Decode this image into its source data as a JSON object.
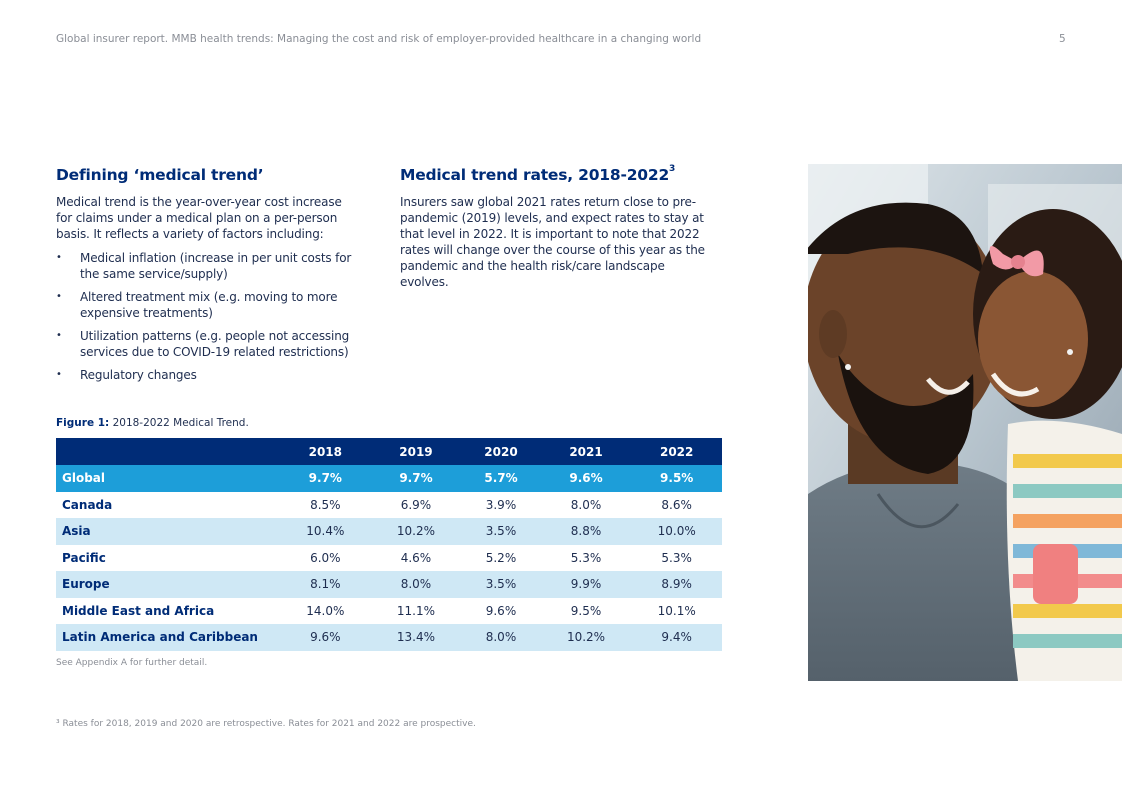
{
  "header": {
    "running_title": "Global insurer report. MMB health trends: Managing the cost and risk of employer-provided healthcare in a changing world",
    "page_number": "5"
  },
  "definition": {
    "heading": "Defining ‘medical trend’",
    "paragraph": "Medical trend is the year-over-year cost increase for claims under a medical plan on a per-person basis. It reflects a variety of factors including:",
    "bullets": [
      "Medical inflation (increase in per unit costs for the same service/supply)",
      "Altered treatment mix (e.g. moving to more expensive treatments)",
      "Utilization patterns (e.g. people not accessing services due to COVID-19 related restrictions)",
      "Regulatory changes"
    ]
  },
  "rates": {
    "heading": "Medical trend rates, 2018-2022",
    "heading_sup": "3",
    "paragraph": "Insurers saw global 2021 rates return close to pre-pandemic (2019) levels, and expect rates to stay at that level in 2022. It is important to note that 2022 rates will change over the course of this year as the pandemic and the health risk/care landscape evolves."
  },
  "figure": {
    "label": "Figure 1:",
    "caption": "2018-2022 Medical Trend."
  },
  "table": {
    "columns": [
      "",
      "2018",
      "2019",
      "2020",
      "2021",
      "2022"
    ],
    "rows": [
      {
        "region": "Global",
        "values": [
          "9.7%",
          "9.7%",
          "5.7%",
          "9.6%",
          "9.5%"
        ]
      },
      {
        "region": "Canada",
        "values": [
          "8.5%",
          "6.9%",
          "3.9%",
          "8.0%",
          "8.6%"
        ]
      },
      {
        "region": "Asia",
        "values": [
          "10.4%",
          "10.2%",
          "3.5%",
          "8.8%",
          "10.0%"
        ]
      },
      {
        "region": "Pacific",
        "values": [
          "6.0%",
          "4.6%",
          "5.2%",
          "5.3%",
          "5.3%"
        ]
      },
      {
        "region": "Europe",
        "values": [
          "8.1%",
          "8.0%",
          "3.5%",
          "9.9%",
          "8.9%"
        ]
      },
      {
        "region": "Middle East and Africa",
        "values": [
          "14.0%",
          "11.1%",
          "9.6%",
          "9.5%",
          "10.1%"
        ]
      },
      {
        "region": "Latin America and Caribbean",
        "values": [
          "9.6%",
          "13.4%",
          "8.0%",
          "10.2%",
          "9.4%"
        ]
      }
    ]
  },
  "note": "See Appendix A for further detail.",
  "footnote": "³ Rates for 2018, 2019 and 2020 are retrospective. Rates for 2021 and 2022 are prospective.",
  "colors": {
    "navy": "#002c77",
    "global_row": "#1d9ed9",
    "shade_row": "#cfe8f5",
    "muted_text": "#8a8e96"
  }
}
